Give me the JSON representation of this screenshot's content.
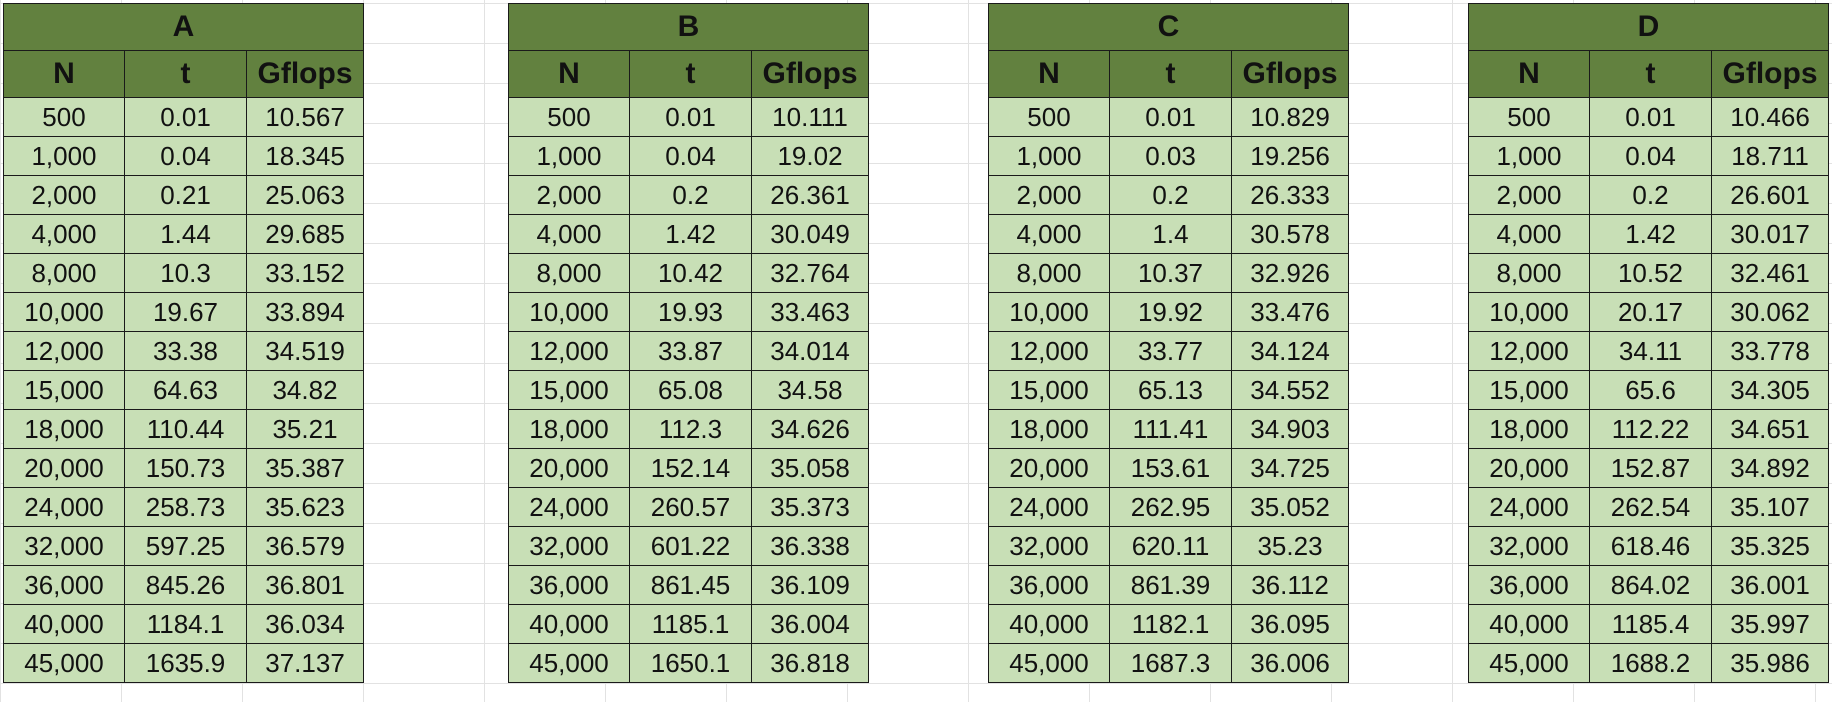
{
  "tables": [
    {
      "title": "A",
      "headers": [
        "N",
        "t",
        "Gflops"
      ],
      "rows": [
        [
          "500",
          "0.01",
          "10.567"
        ],
        [
          "1,000",
          "0.04",
          "18.345"
        ],
        [
          "2,000",
          "0.21",
          "25.063"
        ],
        [
          "4,000",
          "1.44",
          "29.685"
        ],
        [
          "8,000",
          "10.3",
          "33.152"
        ],
        [
          "10,000",
          "19.67",
          "33.894"
        ],
        [
          "12,000",
          "33.38",
          "34.519"
        ],
        [
          "15,000",
          "64.63",
          "34.82"
        ],
        [
          "18,000",
          "110.44",
          "35.21"
        ],
        [
          "20,000",
          "150.73",
          "35.387"
        ],
        [
          "24,000",
          "258.73",
          "35.623"
        ],
        [
          "32,000",
          "597.25",
          "36.579"
        ],
        [
          "36,000",
          "845.26",
          "36.801"
        ],
        [
          "40,000",
          "1184.1",
          "36.034"
        ],
        [
          "45,000",
          "1635.9",
          "37.137"
        ]
      ]
    },
    {
      "title": "B",
      "headers": [
        "N",
        "t",
        "Gflops"
      ],
      "rows": [
        [
          "500",
          "0.01",
          "10.111"
        ],
        [
          "1,000",
          "0.04",
          "19.02"
        ],
        [
          "2,000",
          "0.2",
          "26.361"
        ],
        [
          "4,000",
          "1.42",
          "30.049"
        ],
        [
          "8,000",
          "10.42",
          "32.764"
        ],
        [
          "10,000",
          "19.93",
          "33.463"
        ],
        [
          "12,000",
          "33.87",
          "34.014"
        ],
        [
          "15,000",
          "65.08",
          "34.58"
        ],
        [
          "18,000",
          "112.3",
          "34.626"
        ],
        [
          "20,000",
          "152.14",
          "35.058"
        ],
        [
          "24,000",
          "260.57",
          "35.373"
        ],
        [
          "32,000",
          "601.22",
          "36.338"
        ],
        [
          "36,000",
          "861.45",
          "36.109"
        ],
        [
          "40,000",
          "1185.1",
          "36.004"
        ],
        [
          "45,000",
          "1650.1",
          "36.818"
        ]
      ]
    },
    {
      "title": "C",
      "headers": [
        "N",
        "t",
        "Gflops"
      ],
      "rows": [
        [
          "500",
          "0.01",
          "10.829"
        ],
        [
          "1,000",
          "0.03",
          "19.256"
        ],
        [
          "2,000",
          "0.2",
          "26.333"
        ],
        [
          "4,000",
          "1.4",
          "30.578"
        ],
        [
          "8,000",
          "10.37",
          "32.926"
        ],
        [
          "10,000",
          "19.92",
          "33.476"
        ],
        [
          "12,000",
          "33.77",
          "34.124"
        ],
        [
          "15,000",
          "65.13",
          "34.552"
        ],
        [
          "18,000",
          "111.41",
          "34.903"
        ],
        [
          "20,000",
          "153.61",
          "34.725"
        ],
        [
          "24,000",
          "262.95",
          "35.052"
        ],
        [
          "32,000",
          "620.11",
          "35.23"
        ],
        [
          "36,000",
          "861.39",
          "36.112"
        ],
        [
          "40,000",
          "1182.1",
          "36.095"
        ],
        [
          "45,000",
          "1687.3",
          "36.006"
        ]
      ]
    },
    {
      "title": "D",
      "headers": [
        "N",
        "t",
        "Gflops"
      ],
      "rows": [
        [
          "500",
          "0.01",
          "10.466"
        ],
        [
          "1,000",
          "0.04",
          "18.711"
        ],
        [
          "2,000",
          "0.2",
          "26.601"
        ],
        [
          "4,000",
          "1.42",
          "30.017"
        ],
        [
          "8,000",
          "10.52",
          "32.461"
        ],
        [
          "10,000",
          "20.17",
          "30.062"
        ],
        [
          "12,000",
          "34.11",
          "33.778"
        ],
        [
          "15,000",
          "65.6",
          "34.305"
        ],
        [
          "18,000",
          "112.22",
          "34.651"
        ],
        [
          "20,000",
          "152.87",
          "34.892"
        ],
        [
          "24,000",
          "262.54",
          "35.107"
        ],
        [
          "32,000",
          "618.46",
          "35.325"
        ],
        [
          "36,000",
          "864.02",
          "36.001"
        ],
        [
          "40,000",
          "1185.4",
          "35.997"
        ],
        [
          "45,000",
          "1688.2",
          "35.986"
        ]
      ]
    }
  ],
  "colors": {
    "header_fill": "#62813f",
    "cell_fill": "#c8dfb6",
    "border": "#1a1a1a",
    "text": "#111111"
  }
}
